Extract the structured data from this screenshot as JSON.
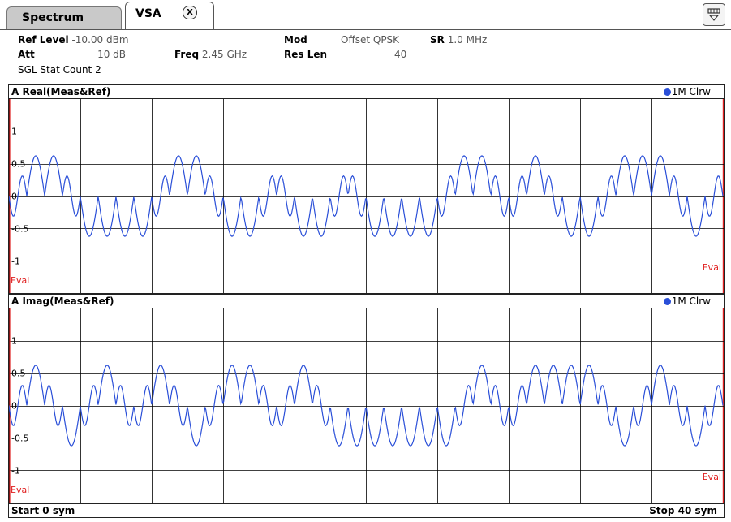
{
  "tabs": [
    {
      "label": "Spectrum",
      "active": false
    },
    {
      "label": "VSA",
      "active": true,
      "close_label": "X"
    }
  ],
  "header": {
    "ref_level_label": "Ref Level",
    "ref_level_value": "-10.00 dBm",
    "att_label": "Att",
    "att_value": "10 dB",
    "freq_label": "Freq",
    "freq_value": "2.45 GHz",
    "mod_label": "Mod",
    "mod_value": "Offset QPSK",
    "sr_label": "SR",
    "sr_value": "1.0 MHz",
    "res_len_label": "Res Len",
    "res_len_value": "40",
    "sgl_stat": "SGL Stat Count 2"
  },
  "panes": [
    {
      "title": "A Real(Meas&Ref)",
      "legend": "1M Clrw",
      "eval_label": "Eval"
    },
    {
      "title": "A Imag(Meas&Ref)",
      "legend": "1M Clrw",
      "eval_label": "Eval"
    }
  ],
  "footer": {
    "start": "Start 0 sym",
    "stop": "Stop 40 sym"
  },
  "colors": {
    "trace": "#2a4fd8",
    "eval": "#e02020",
    "grid": "#000000"
  },
  "chart_data": [
    {
      "type": "line",
      "title": "A Real(Meas&Ref)",
      "legend": [
        "1M Clrw"
      ],
      "legend_placement": "top-right",
      "xlim": [
        0,
        40
      ],
      "ylim": [
        -1.3,
        1.3
      ],
      "yticks": [
        1,
        0.5,
        0,
        -0.5,
        -1
      ],
      "ytick_labels": [
        "1",
        "0.5",
        "0",
        "-0.5",
        "-1"
      ],
      "grid": true,
      "series": [
        {
          "name": "1M Clrw",
          "symbols": [
            0,
            1,
            1,
            1,
            0,
            0,
            0,
            0,
            0,
            1,
            1,
            1,
            0,
            0,
            0,
            1,
            0,
            0,
            0,
            1,
            0,
            0,
            0,
            0,
            0,
            1,
            1,
            1,
            0,
            1,
            1,
            0,
            0,
            0,
            1,
            1,
            1,
            1,
            0,
            0,
            1
          ]
        }
      ]
    },
    {
      "type": "line",
      "title": "A Imag(Meas&Ref)",
      "legend": [
        "1M Clrw"
      ],
      "legend_placement": "top-right",
      "xlim": [
        0,
        40
      ],
      "ylim": [
        -1.3,
        1.3
      ],
      "yticks": [
        1,
        0.5,
        0,
        -0.5,
        -1
      ],
      "ytick_labels": [
        "1",
        "0.5",
        "0",
        "-0.5",
        "-1"
      ],
      "grid": true,
      "series": [
        {
          "name": "1M Clrw",
          "symbols": [
            0,
            1,
            1,
            0,
            0,
            1,
            1,
            0,
            1,
            1,
            0,
            0,
            1,
            1,
            1,
            0,
            1,
            1,
            0,
            0,
            0,
            0,
            0,
            0,
            0,
            0,
            1,
            1,
            0,
            1,
            1,
            1,
            1,
            1,
            0,
            0,
            1,
            1,
            0,
            0,
            1
          ]
        }
      ]
    }
  ]
}
